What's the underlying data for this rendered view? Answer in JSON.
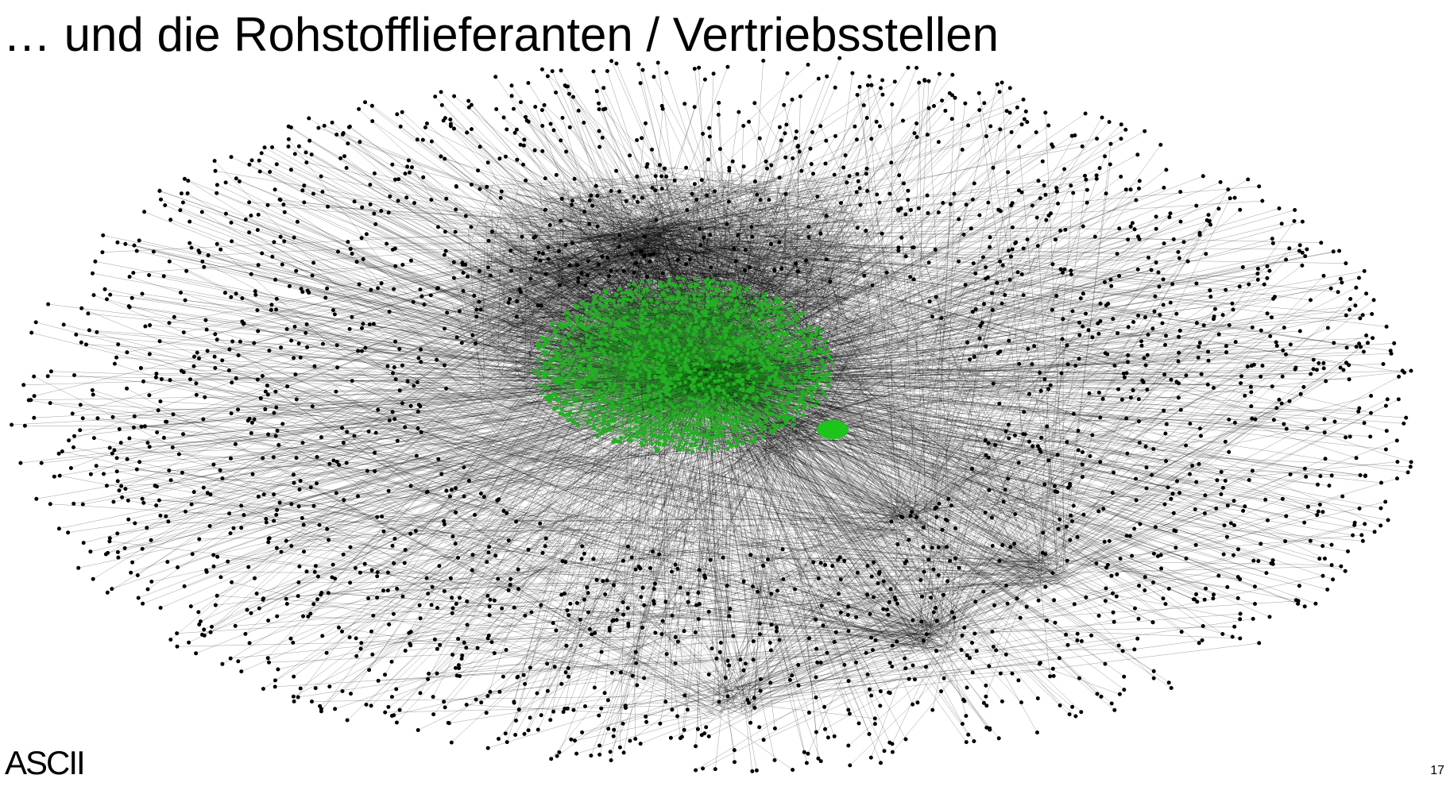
{
  "header": {
    "title": "… und die Rohstofflieferanten / Vertriebsstellen"
  },
  "footer": {
    "logo": "ASCII",
    "page_number": "17"
  }
}
